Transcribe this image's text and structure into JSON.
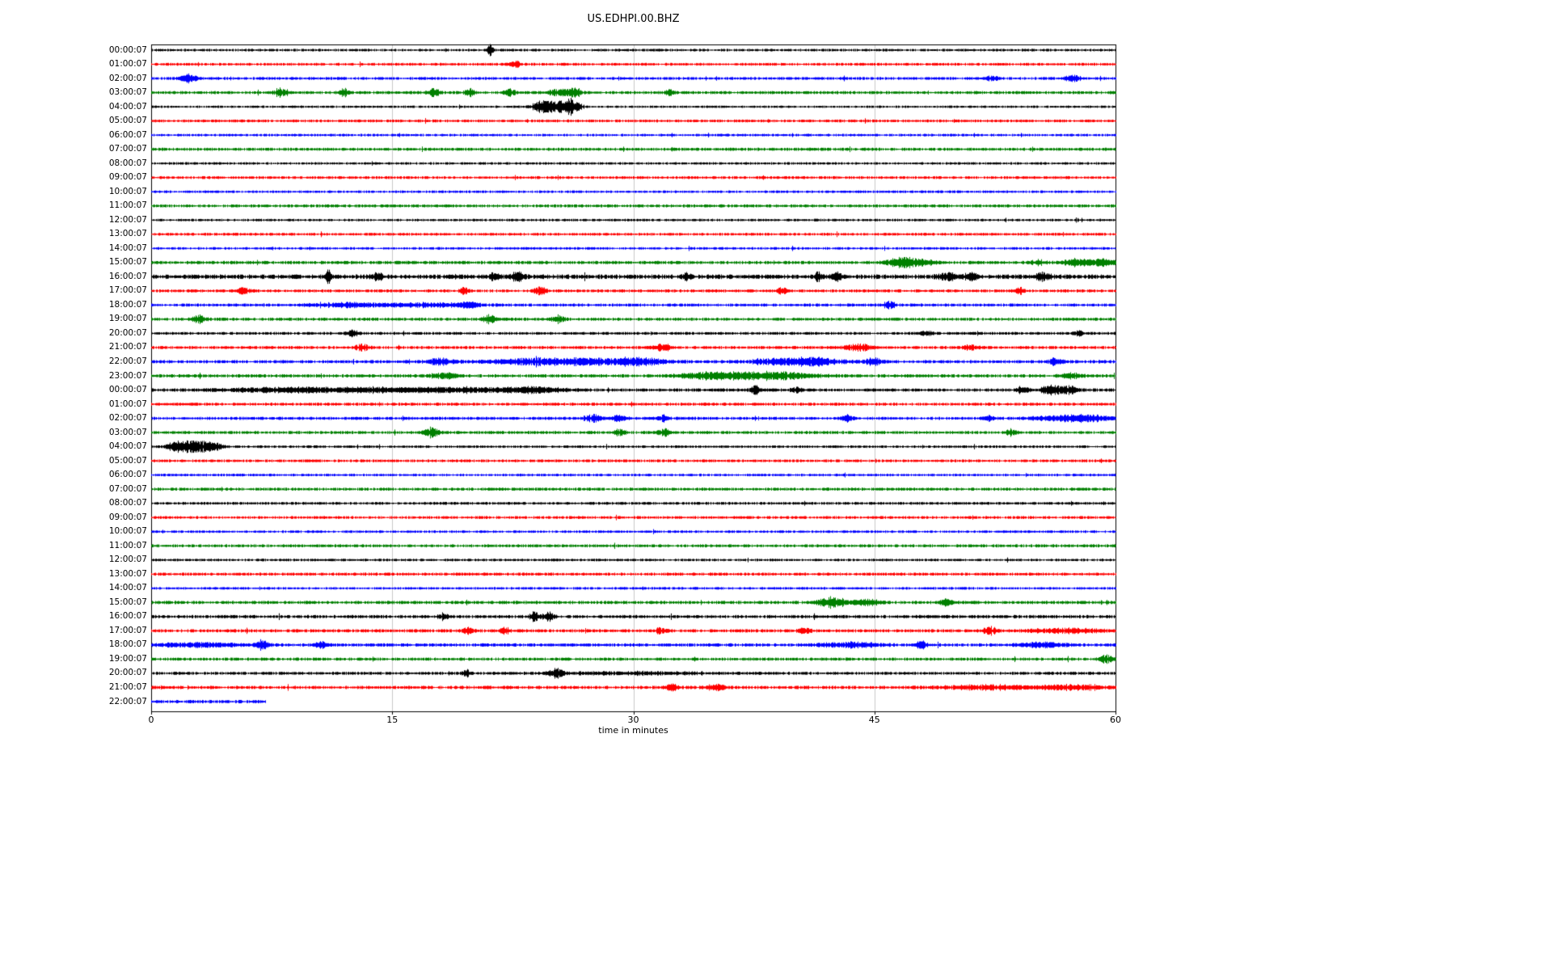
{
  "figure": {
    "title": "US.EDHPI.00.BHZ",
    "xlabel": "time in minutes"
  },
  "chart_data": {
    "type": "line",
    "subtype": "seismogram-helicorder-dayplot",
    "title": "US.EDHPI.00.BHZ",
    "xlabel": "time in minutes",
    "ylabel": "",
    "xlim": [
      0,
      60
    ],
    "xticks": [
      0,
      15,
      30,
      45,
      60
    ],
    "grid": {
      "vertical_at_minutes": [
        15,
        30,
        45
      ],
      "color": "#c8c8c8",
      "on": true
    },
    "axis_color": "#000000",
    "legend": "none",
    "row_interval_minutes": 60,
    "color_cycle": [
      "#000000",
      "#ff0000",
      "#0000ff",
      "#008000"
    ],
    "rows": [
      {
        "label": "00:00:07",
        "color": "#000000",
        "noise": 1.1,
        "events": [
          {
            "t": 21.1,
            "w": 0.12,
            "a": 5
          }
        ]
      },
      {
        "label": "01:00:07",
        "color": "#ff0000",
        "noise": 1.2,
        "events": [
          {
            "t": 22.6,
            "w": 0.25,
            "a": 2.5
          }
        ]
      },
      {
        "label": "02:00:07",
        "color": "#0000ff",
        "noise": 1.2,
        "events": [
          {
            "t": 2.3,
            "w": 0.35,
            "a": 3.5
          },
          {
            "t": 52.2,
            "w": 0.3,
            "a": 2
          },
          {
            "t": 57.3,
            "w": 0.35,
            "a": 2.5
          }
        ]
      },
      {
        "label": "03:00:07",
        "color": "#008000",
        "noise": 1.3,
        "events": [
          {
            "t": 8.0,
            "w": 0.25,
            "a": 4
          },
          {
            "t": 12.0,
            "w": 0.2,
            "a": 3
          },
          {
            "t": 17.6,
            "w": 0.25,
            "a": 3.5
          },
          {
            "t": 19.8,
            "w": 0.2,
            "a": 3
          },
          {
            "t": 22.3,
            "w": 0.25,
            "a": 3.5
          },
          {
            "t": 25.4,
            "w": 0.5,
            "a": 3
          },
          {
            "t": 26.3,
            "w": 0.3,
            "a": 4
          },
          {
            "t": 32.3,
            "w": 0.2,
            "a": 2.5
          }
        ]
      },
      {
        "label": "04:00:07",
        "color": "#000000",
        "noise": 1.0,
        "events": [
          {
            "t": 24.2,
            "w": 0.35,
            "a": 4
          },
          {
            "t": 25.1,
            "w": 0.6,
            "a": 5
          },
          {
            "t": 26.2,
            "w": 0.35,
            "a": 6
          }
        ]
      },
      {
        "label": "05:00:07",
        "color": "#ff0000",
        "noise": 1.2,
        "events": []
      },
      {
        "label": "06:00:07",
        "color": "#0000ff",
        "noise": 1.1,
        "events": []
      },
      {
        "label": "07:00:07",
        "color": "#008000",
        "noise": 1.3,
        "events": []
      },
      {
        "label": "08:00:07",
        "color": "#000000",
        "noise": 1.1,
        "events": []
      },
      {
        "label": "09:00:07",
        "color": "#ff0000",
        "noise": 1.2,
        "events": []
      },
      {
        "label": "10:00:07",
        "color": "#0000ff",
        "noise": 1.1,
        "events": []
      },
      {
        "label": "11:00:07",
        "color": "#008000",
        "noise": 1.3,
        "events": []
      },
      {
        "label": "12:00:07",
        "color": "#000000",
        "noise": 1.1,
        "events": []
      },
      {
        "label": "13:00:07",
        "color": "#ff0000",
        "noise": 1.2,
        "events": []
      },
      {
        "label": "14:00:07",
        "color": "#0000ff",
        "noise": 1.1,
        "events": []
      },
      {
        "label": "15:00:07",
        "color": "#008000",
        "noise": 1.4,
        "events": [
          {
            "t": 46.2,
            "w": 0.4,
            "a": 3
          },
          {
            "t": 47.0,
            "w": 0.4,
            "a": 3.5
          },
          {
            "t": 47.9,
            "w": 0.5,
            "a": 2.5
          },
          {
            "t": 55.2,
            "w": 0.3,
            "a": 2
          },
          {
            "t": 57.5,
            "w": 0.5,
            "a": 2.5
          },
          {
            "t": 59.0,
            "w": 0.8,
            "a": 2.5
          }
        ]
      },
      {
        "label": "16:00:07",
        "color": "#000000",
        "noise": 1.9,
        "events": [
          {
            "t": 11.0,
            "w": 0.12,
            "a": 5
          },
          {
            "t": 14.0,
            "w": 0.25,
            "a": 3
          },
          {
            "t": 21.3,
            "w": 0.2,
            "a": 2.5
          },
          {
            "t": 22.8,
            "w": 0.25,
            "a": 3.5
          },
          {
            "t": 33.3,
            "w": 0.2,
            "a": 3
          },
          {
            "t": 41.5,
            "w": 0.12,
            "a": 4
          },
          {
            "t": 42.6,
            "w": 0.25,
            "a": 3
          },
          {
            "t": 49.5,
            "w": 0.35,
            "a": 3
          },
          {
            "t": 51.0,
            "w": 0.35,
            "a": 3
          },
          {
            "t": 55.5,
            "w": 0.3,
            "a": 3
          }
        ]
      },
      {
        "label": "17:00:07",
        "color": "#ff0000",
        "noise": 1.3,
        "events": [
          {
            "t": 5.7,
            "w": 0.3,
            "a": 2.5
          },
          {
            "t": 19.5,
            "w": 0.2,
            "a": 3
          },
          {
            "t": 24.2,
            "w": 0.25,
            "a": 3.5
          },
          {
            "t": 39.3,
            "w": 0.25,
            "a": 2.5
          },
          {
            "t": 54.0,
            "w": 0.2,
            "a": 2.5
          }
        ]
      },
      {
        "label": "18:00:07",
        "color": "#0000ff",
        "noise": 1.3,
        "events": [
          {
            "t": 12.0,
            "w": 1.5,
            "a": 1.5
          },
          {
            "t": 17.0,
            "w": 2.0,
            "a": 1.5
          },
          {
            "t": 19.8,
            "w": 0.4,
            "a": 2.5
          },
          {
            "t": 45.9,
            "w": 0.25,
            "a": 3.5
          }
        ]
      },
      {
        "label": "19:00:07",
        "color": "#008000",
        "noise": 1.3,
        "events": [
          {
            "t": 2.9,
            "w": 0.3,
            "a": 3
          },
          {
            "t": 21.0,
            "w": 0.3,
            "a": 3
          },
          {
            "t": 25.3,
            "w": 0.25,
            "a": 3
          }
        ]
      },
      {
        "label": "20:00:07",
        "color": "#000000",
        "noise": 1.2,
        "events": [
          {
            "t": 12.5,
            "w": 0.25,
            "a": 3.5
          },
          {
            "t": 48.2,
            "w": 0.3,
            "a": 2
          },
          {
            "t": 57.7,
            "w": 0.2,
            "a": 2.5
          }
        ]
      },
      {
        "label": "21:00:07",
        "color": "#ff0000",
        "noise": 1.3,
        "events": [
          {
            "t": 13.1,
            "w": 0.25,
            "a": 3
          },
          {
            "t": 31.8,
            "w": 0.35,
            "a": 3
          },
          {
            "t": 44.0,
            "w": 0.6,
            "a": 2.5
          },
          {
            "t": 51.0,
            "w": 0.3,
            "a": 2
          }
        ]
      },
      {
        "label": "22:00:07",
        "color": "#0000ff",
        "noise": 1.4,
        "events": [
          {
            "t": 18.0,
            "w": 0.6,
            "a": 2.5
          },
          {
            "t": 24.0,
            "w": 2.0,
            "a": 2.2
          },
          {
            "t": 28.0,
            "w": 2.0,
            "a": 2.2
          },
          {
            "t": 30.5,
            "w": 1.0,
            "a": 2.5
          },
          {
            "t": 39.5,
            "w": 1.5,
            "a": 2.3
          },
          {
            "t": 41.5,
            "w": 1.0,
            "a": 2.3
          },
          {
            "t": 44.9,
            "w": 0.4,
            "a": 2.5
          },
          {
            "t": 56.3,
            "w": 0.3,
            "a": 3
          }
        ]
      },
      {
        "label": "23:00:07",
        "color": "#008000",
        "noise": 1.4,
        "events": [
          {
            "t": 18.2,
            "w": 0.6,
            "a": 2.5
          },
          {
            "t": 34.5,
            "w": 1.2,
            "a": 2.3
          },
          {
            "t": 37.0,
            "w": 1.5,
            "a": 2.3
          },
          {
            "t": 39.5,
            "w": 1.2,
            "a": 2.3
          },
          {
            "t": 57.2,
            "w": 0.4,
            "a": 2.5
          }
        ]
      },
      {
        "label": "00:00:07",
        "color": "#000000",
        "noise": 1.4,
        "events": [
          {
            "t": 8.0,
            "w": 2.5,
            "a": 1.6
          },
          {
            "t": 14.0,
            "w": 3.0,
            "a": 1.7
          },
          {
            "t": 20.0,
            "w": 2.5,
            "a": 1.6
          },
          {
            "t": 24.0,
            "w": 1.2,
            "a": 1.8
          },
          {
            "t": 37.6,
            "w": 0.2,
            "a": 4
          },
          {
            "t": 40.1,
            "w": 0.2,
            "a": 3
          },
          {
            "t": 54.2,
            "w": 0.25,
            "a": 3.5
          },
          {
            "t": 56.0,
            "w": 0.5,
            "a": 3.5
          },
          {
            "t": 57.0,
            "w": 0.4,
            "a": 3
          }
        ]
      },
      {
        "label": "01:00:07",
        "color": "#ff0000",
        "noise": 1.3,
        "events": []
      },
      {
        "label": "02:00:07",
        "color": "#0000ff",
        "noise": 1.3,
        "events": [
          {
            "t": 27.5,
            "w": 0.4,
            "a": 3
          },
          {
            "t": 29.1,
            "w": 0.3,
            "a": 3
          },
          {
            "t": 31.8,
            "w": 0.25,
            "a": 2.5
          },
          {
            "t": 43.3,
            "w": 0.25,
            "a": 2.5
          },
          {
            "t": 52.1,
            "w": 0.25,
            "a": 2.5
          },
          {
            "t": 56.5,
            "w": 1.2,
            "a": 2
          },
          {
            "t": 58.5,
            "w": 1.0,
            "a": 2.2
          }
        ]
      },
      {
        "label": "03:00:07",
        "color": "#008000",
        "noise": 1.3,
        "events": [
          {
            "t": 17.4,
            "w": 0.3,
            "a": 4
          },
          {
            "t": 29.1,
            "w": 0.25,
            "a": 2.5
          },
          {
            "t": 31.9,
            "w": 0.3,
            "a": 3
          },
          {
            "t": 53.5,
            "w": 0.25,
            "a": 2.5
          }
        ]
      },
      {
        "label": "04:00:07",
        "color": "#000000",
        "noise": 1.1,
        "events": [
          {
            "t": 1.3,
            "w": 0.3,
            "a": 3.5
          },
          {
            "t": 2.2,
            "w": 0.5,
            "a": 4.5
          },
          {
            "t": 3.2,
            "w": 0.5,
            "a": 4
          },
          {
            "t": 4.0,
            "w": 0.3,
            "a": 3
          }
        ]
      },
      {
        "label": "05:00:07",
        "color": "#ff0000",
        "noise": 1.2,
        "events": []
      },
      {
        "label": "06:00:07",
        "color": "#0000ff",
        "noise": 1.1,
        "events": []
      },
      {
        "label": "07:00:07",
        "color": "#008000",
        "noise": 1.3,
        "events": []
      },
      {
        "label": "08:00:07",
        "color": "#000000",
        "noise": 1.2,
        "events": []
      },
      {
        "label": "09:00:07",
        "color": "#ff0000",
        "noise": 1.2,
        "events": []
      },
      {
        "label": "10:00:07",
        "color": "#0000ff",
        "noise": 1.1,
        "events": []
      },
      {
        "label": "11:00:07",
        "color": "#008000",
        "noise": 1.3,
        "events": []
      },
      {
        "label": "12:00:07",
        "color": "#000000",
        "noise": 1.1,
        "events": []
      },
      {
        "label": "13:00:07",
        "color": "#ff0000",
        "noise": 1.3,
        "events": []
      },
      {
        "label": "14:00:07",
        "color": "#0000ff",
        "noise": 1.1,
        "events": []
      },
      {
        "label": "15:00:07",
        "color": "#008000",
        "noise": 1.4,
        "events": [
          {
            "t": 42.0,
            "w": 0.4,
            "a": 3.5
          },
          {
            "t": 42.8,
            "w": 0.4,
            "a": 3
          },
          {
            "t": 44.5,
            "w": 0.6,
            "a": 2.5
          },
          {
            "t": 49.4,
            "w": 0.3,
            "a": 2.5
          }
        ]
      },
      {
        "label": "16:00:07",
        "color": "#000000",
        "noise": 1.4,
        "events": [
          {
            "t": 18.2,
            "w": 0.2,
            "a": 3
          },
          {
            "t": 23.8,
            "w": 0.2,
            "a": 3.5
          },
          {
            "t": 24.7,
            "w": 0.25,
            "a": 3.5
          }
        ]
      },
      {
        "label": "17:00:07",
        "color": "#ff0000",
        "noise": 1.4,
        "events": [
          {
            "t": 19.7,
            "w": 0.25,
            "a": 3
          },
          {
            "t": 22.0,
            "w": 0.2,
            "a": 3
          },
          {
            "t": 31.7,
            "w": 0.25,
            "a": 2.5
          },
          {
            "t": 40.6,
            "w": 0.25,
            "a": 2.5
          },
          {
            "t": 52.2,
            "w": 0.3,
            "a": 3
          },
          {
            "t": 57.0,
            "w": 1.5,
            "a": 1.8
          }
        ]
      },
      {
        "label": "18:00:07",
        "color": "#0000ff",
        "noise": 1.4,
        "events": [
          {
            "t": 3.0,
            "w": 2.0,
            "a": 1.6
          },
          {
            "t": 6.9,
            "w": 0.25,
            "a": 3.5
          },
          {
            "t": 10.6,
            "w": 0.3,
            "a": 2.5
          },
          {
            "t": 43.5,
            "w": 1.2,
            "a": 2
          },
          {
            "t": 47.9,
            "w": 0.25,
            "a": 3
          },
          {
            "t": 55.5,
            "w": 1.0,
            "a": 1.8
          }
        ]
      },
      {
        "label": "19:00:07",
        "color": "#008000",
        "noise": 1.3,
        "events": [
          {
            "t": 59.4,
            "w": 0.3,
            "a": 3.5
          }
        ]
      },
      {
        "label": "20:00:07",
        "color": "#000000",
        "noise": 1.3,
        "events": [
          {
            "t": 19.6,
            "w": 0.15,
            "a": 3.5
          },
          {
            "t": 25.2,
            "w": 0.3,
            "a": 3.5
          },
          {
            "t": 30.0,
            "w": 3.0,
            "a": 1.0
          }
        ]
      },
      {
        "label": "21:00:07",
        "color": "#ff0000",
        "noise": 1.4,
        "events": [
          {
            "t": 32.4,
            "w": 0.25,
            "a": 3
          },
          {
            "t": 35.1,
            "w": 0.35,
            "a": 2.5
          },
          {
            "t": 52.0,
            "w": 2.0,
            "a": 1.8
          },
          {
            "t": 57.5,
            "w": 1.5,
            "a": 2
          }
        ]
      },
      {
        "label": "22:00:07",
        "color": "#0000ff",
        "noise": 1.4,
        "duration": 7.1,
        "events": []
      }
    ]
  }
}
